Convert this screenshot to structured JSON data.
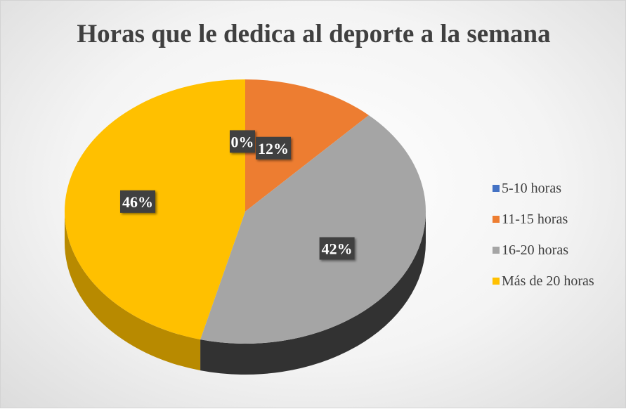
{
  "chart_data": {
    "type": "pie",
    "title": "Horas que le dedica al deporte a la semana",
    "categories": [
      "5-10 horas",
      "11-15 horas",
      "16-20 horas",
      "Más de 20 horas"
    ],
    "values": [
      0,
      12,
      42,
      46
    ],
    "value_labels": [
      "0%",
      "12%",
      "42%",
      "46%"
    ],
    "colors": [
      "#4472C4",
      "#ED7D31",
      "#A5A5A5",
      "#FFC000"
    ],
    "style": "3d",
    "legend_position": "right"
  }
}
